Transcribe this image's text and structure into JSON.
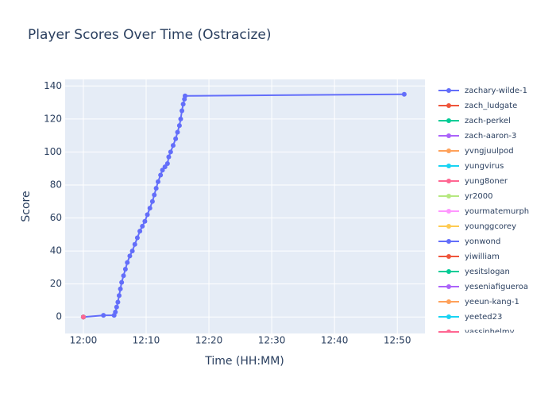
{
  "chart_data": {
    "type": "line",
    "title": "Player Scores Over Time (Ostracize)",
    "x_label": "Time (HH:MM)",
    "y_label": "Score",
    "xlim": [
      -2.9,
      54.4
    ],
    "ylim": [
      -10,
      144
    ],
    "xticks": [
      {
        "value": 0,
        "label": "12:00"
      },
      {
        "value": 10,
        "label": "12:10"
      },
      {
        "value": 20,
        "label": "12:20"
      },
      {
        "value": 30,
        "label": "12:30"
      },
      {
        "value": 40,
        "label": "12:40"
      },
      {
        "value": 50,
        "label": "12:50"
      }
    ],
    "yticks": [
      0,
      20,
      40,
      60,
      80,
      100,
      120,
      140
    ],
    "grid": true,
    "series": [
      {
        "name": "zachary-wilde-1",
        "color": "#636efa",
        "x": [
          0,
          3.2,
          4.9,
          5.1,
          5.3,
          5.5,
          5.7,
          5.9,
          6.1,
          6.4,
          6.7,
          7.0,
          7.4,
          7.8,
          8.2,
          8.6,
          9.0,
          9.4,
          9.8,
          10.2,
          10.6,
          11.0,
          11.3,
          11.6,
          11.9,
          12.3,
          12.6,
          13.0,
          13.4,
          13.6,
          13.9,
          14.3,
          14.7,
          15.0,
          15.3,
          15.5,
          15.7,
          15.9,
          16.1,
          16.2,
          51.1
        ],
        "values": [
          0,
          1,
          1,
          3,
          6,
          9,
          13,
          17,
          21,
          25,
          29,
          33,
          37,
          40,
          44,
          48,
          52,
          55,
          58,
          62,
          66,
          70,
          74,
          78,
          82,
          86,
          89,
          91,
          93,
          97,
          100,
          104,
          108,
          112,
          116,
          120,
          125,
          129,
          132,
          134,
          135
        ]
      },
      {
        "name": "zach_ludgate",
        "color": "#EF553B",
        "x": [
          0
        ],
        "values": [
          0
        ]
      },
      {
        "name": "zach-perkel",
        "color": "#00cc96",
        "x": [
          0
        ],
        "values": [
          0
        ]
      },
      {
        "name": "zach-aaron-3",
        "color": "#ab63fa",
        "x": [
          0
        ],
        "values": [
          0
        ]
      },
      {
        "name": "yvngjuulpod",
        "color": "#FFA15A",
        "x": [
          0
        ],
        "values": [
          0
        ]
      },
      {
        "name": "yungvirus",
        "color": "#19d3f3",
        "x": [
          0
        ],
        "values": [
          0
        ]
      },
      {
        "name": "yung8oner",
        "color": "#FF6692",
        "x": [
          0
        ],
        "values": [
          0
        ]
      },
      {
        "name": "yr2000",
        "color": "#B6E880",
        "x": [
          0
        ],
        "values": [
          0
        ]
      },
      {
        "name": "yourmatemurph",
        "color": "#FF97FF",
        "x": [
          0
        ],
        "values": [
          0
        ]
      },
      {
        "name": "younggcorey",
        "color": "#FECB52",
        "x": [
          0
        ],
        "values": [
          0
        ]
      },
      {
        "name": "yonwond",
        "color": "#636efa",
        "x": [
          0
        ],
        "values": [
          0
        ]
      },
      {
        "name": "yiwilliam",
        "color": "#EF553B",
        "x": [
          0
        ],
        "values": [
          0
        ]
      },
      {
        "name": "yesitslogan",
        "color": "#00cc96",
        "x": [
          0
        ],
        "values": [
          0
        ]
      },
      {
        "name": "yeseniafigueroa",
        "color": "#ab63fa",
        "x": [
          0
        ],
        "values": [
          0
        ]
      },
      {
        "name": "yeeun-kang-1",
        "color": "#FFA15A",
        "x": [
          0
        ],
        "values": [
          0
        ]
      },
      {
        "name": "yeeted23",
        "color": "#19d3f3",
        "x": [
          0
        ],
        "values": [
          0
        ]
      },
      {
        "name": "yassinhelmy",
        "color": "#FF6692",
        "x": [
          0
        ],
        "values": [
          0
        ]
      }
    ]
  }
}
